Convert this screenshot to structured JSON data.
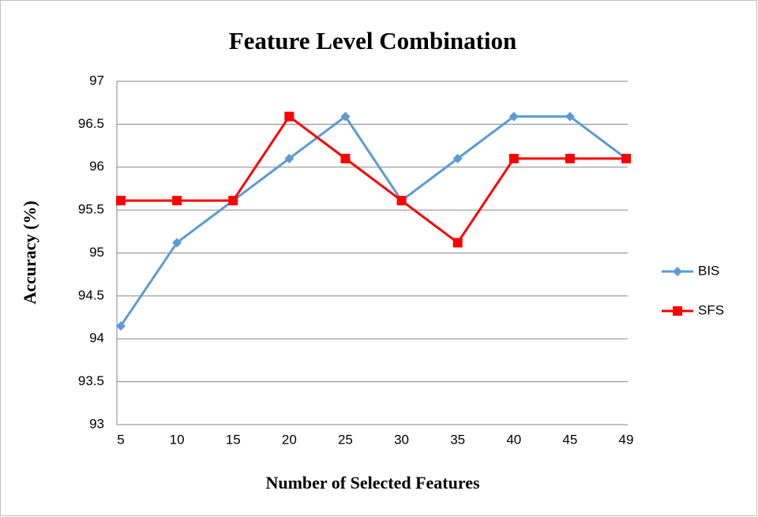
{
  "chart_data": {
    "type": "line",
    "title": "Feature Level Combination",
    "x_label": "Number of Selected Features",
    "y_label": "Accuracy (%)",
    "categories": [
      "5",
      "10",
      "15",
      "20",
      "25",
      "30",
      "35",
      "40",
      "45",
      "49"
    ],
    "series": [
      {
        "name": "BIS",
        "color": "#5b9bd5",
        "marker": "diamond",
        "values": [
          94.15,
          95.12,
          95.61,
          96.1,
          96.59,
          95.61,
          96.1,
          96.59,
          96.59,
          96.1
        ]
      },
      {
        "name": "SFS",
        "color": "#ff0000",
        "marker": "square",
        "values": [
          95.61,
          95.61,
          95.61,
          96.59,
          96.1,
          95.61,
          95.12,
          96.1,
          96.1,
          96.1
        ]
      }
    ],
    "ylim": [
      93,
      97
    ],
    "yticks": [
      93,
      93.5,
      94,
      94.5,
      95,
      95.5,
      96,
      96.5,
      97
    ],
    "grid": true,
    "legend": "right"
  }
}
